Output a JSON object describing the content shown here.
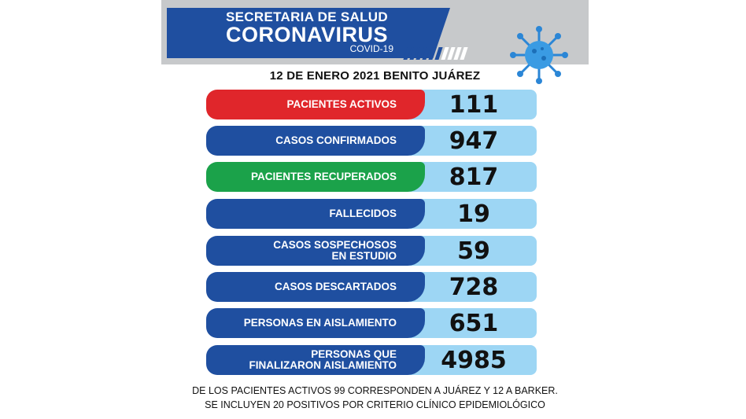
{
  "header": {
    "line1": "SECRETARIA DE SALUD",
    "line2": "CORONAVIRUS",
    "line3": "COVID-19"
  },
  "date_line": "12 DE ENERO 2021 BENITO JUÁREZ",
  "rows": [
    {
      "label": "PACIENTES ACTIVOS",
      "value": "111",
      "color": "#e0262b"
    },
    {
      "label": "CASOS CONFIRMADOS",
      "value": "947",
      "color": "#1f4fa0"
    },
    {
      "label": "PACIENTES RECUPERADOS",
      "value": "817",
      "color": "#1ba24a"
    },
    {
      "label": "FALLECIDOS",
      "value": "19",
      "color": "#1f4fa0"
    },
    {
      "label_line1": "CASOS SOSPECHOSOS",
      "label_line2": "EN ESTUDIO",
      "value": "59",
      "color": "#1f4fa0"
    },
    {
      "label": "CASOS DESCARTADOS",
      "value": "728",
      "color": "#1f4fa0"
    },
    {
      "label": "PERSONAS EN AISLAMIENTO",
      "value": "651",
      "color": "#1f4fa0"
    },
    {
      "label_line1": "PERSONAS QUE",
      "label_line2": "FINALIZARON AISLAMIENTO",
      "value": "4985",
      "color": "#1f4fa0"
    }
  ],
  "footer": {
    "line1": "DE LOS PACIENTES ACTIVOS 99 CORRESPONDEN A JUÁREZ Y 12 A BARKER.",
    "line2": "SE INCLUYEN 20 POSITIVOS  POR  CRITERIO CLÍNICO EPIDEMIOLÓGICO"
  },
  "icons": {
    "virus": "coronavirus-icon"
  },
  "colors": {
    "brand_blue": "#1f4fa0",
    "value_bg": "#9dd6f4",
    "header_gray": "#c7c9cb"
  }
}
